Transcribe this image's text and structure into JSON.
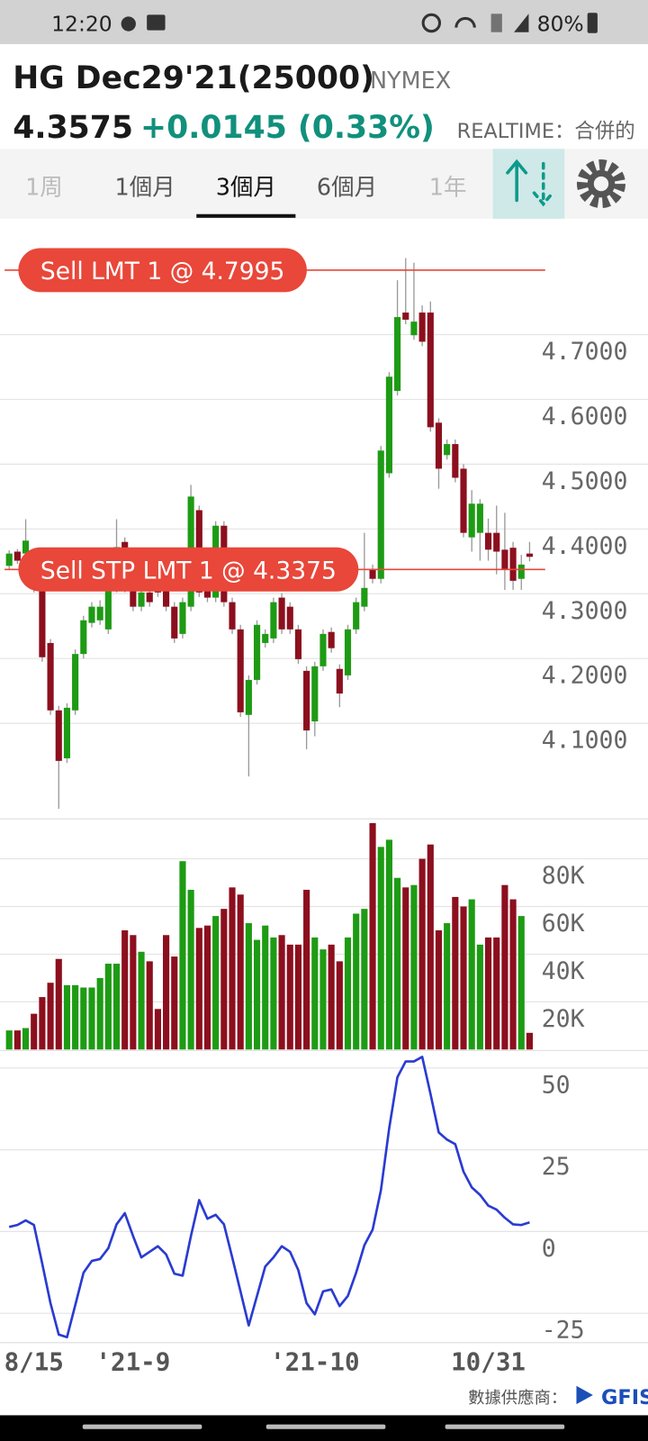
{
  "status_bar": {
    "time": "12:20",
    "battery": "80%"
  },
  "header": {
    "title": "HG Dec29'21(25000)",
    "exchange": "NYMEX",
    "price": "4.3575",
    "change": "+0.0145 (0.33%)",
    "mode": "REALTIME：合併的"
  },
  "tabs": {
    "items": [
      "1周",
      "1個月",
      "3個月",
      "6個月",
      "1年"
    ],
    "selected": 2,
    "disabled": [
      0,
      4
    ]
  },
  "footer": {
    "provider": "數據供應商：",
    "logo": "GFIS"
  },
  "chart_data": [
    {
      "type": "candlestick",
      "up_color": "#1e9b14",
      "down_color": "#8c0f1e",
      "grid": true,
      "ylim": [
        3.954,
        4.876
      ],
      "yticks": [
        {
          "value": 4.1,
          "label": "4.1000"
        },
        {
          "value": 4.2,
          "label": "4.2000"
        },
        {
          "value": 4.3,
          "label": "4.3000"
        },
        {
          "value": 4.4,
          "label": "4.4000"
        },
        {
          "value": 4.5,
          "label": "4.5000"
        },
        {
          "value": 4.6,
          "label": "4.6000"
        },
        {
          "value": 4.7,
          "label": "4.7000"
        }
      ],
      "annotation_color": "#e8473a",
      "annotations": [
        {
          "label": "Sell LMT 1 @ 4.7995",
          "value": 4.7995
        },
        {
          "label": "Sell STP LMT 1 @ 4.3375",
          "value": 4.3375
        }
      ],
      "open": [
        4.343,
        4.365,
        4.362,
        4.351,
        4.309,
        4.224,
        4.12,
        4.046,
        4.12,
        4.207,
        4.255,
        4.259,
        4.245,
        4.309,
        4.38,
        4.309,
        4.28,
        4.302,
        4.351,
        4.316,
        4.28,
        4.238,
        4.28,
        4.429,
        4.309,
        4.294,
        4.405,
        4.287,
        4.245,
        4.113,
        4.167,
        4.224,
        4.231,
        4.294,
        4.28,
        4.245,
        4.181,
        4.103,
        4.188,
        4.241,
        4.184,
        4.174,
        4.245,
        4.28,
        4.337,
        4.323,
        4.486,
        4.613,
        4.734,
        4.699,
        4.734,
        4.734,
        4.564,
        4.514,
        4.531,
        4.493,
        4.387,
        4.394,
        4.394,
        4.394,
        4.368,
        4.371,
        4.323,
        4.362
      ],
      "high": [
        4.367,
        4.369,
        4.415,
        4.358,
        4.315,
        4.23,
        4.127,
        4.131,
        4.214,
        4.266,
        4.287,
        4.29,
        4.316,
        4.415,
        4.387,
        4.316,
        4.309,
        4.309,
        4.358,
        4.323,
        4.287,
        4.294,
        4.468,
        4.436,
        4.316,
        4.412,
        4.412,
        4.294,
        4.252,
        4.174,
        4.259,
        4.245,
        4.294,
        4.301,
        4.287,
        4.252,
        4.188,
        4.195,
        4.245,
        4.248,
        4.191,
        4.252,
        4.294,
        4.394,
        4.345,
        4.528,
        4.642,
        4.784,
        4.818,
        4.811,
        4.745,
        4.751,
        4.571,
        4.538,
        4.538,
        4.5,
        4.46,
        4.446,
        4.416,
        4.436,
        4.425,
        4.38,
        4.36,
        4.38
      ],
      "low": [
        4.337,
        4.346,
        4.357,
        4.302,
        4.195,
        4.113,
        3.968,
        4.039,
        4.113,
        4.2,
        4.248,
        4.252,
        4.238,
        4.302,
        4.302,
        4.273,
        4.273,
        4.28,
        4.295,
        4.273,
        4.224,
        4.231,
        4.273,
        4.295,
        4.287,
        4.287,
        4.28,
        4.238,
        4.11,
        4.018,
        4.16,
        4.217,
        4.224,
        4.238,
        4.238,
        4.192,
        4.06,
        4.08,
        4.181,
        4.209,
        4.125,
        4.167,
        4.238,
        4.273,
        4.316,
        4.316,
        4.479,
        4.606,
        4.716,
        4.692,
        4.682,
        4.55,
        4.462,
        4.507,
        4.472,
        4.387,
        4.365,
        4.351,
        4.351,
        4.33,
        4.306,
        4.306,
        4.306,
        4.35
      ],
      "close": [
        4.362,
        4.351,
        4.382,
        4.309,
        4.202,
        4.12,
        4.042,
        4.124,
        4.207,
        4.259,
        4.28,
        4.28,
        4.309,
        4.372,
        4.309,
        4.28,
        4.302,
        4.287,
        4.302,
        4.28,
        4.231,
        4.287,
        4.45,
        4.302,
        4.294,
        4.405,
        4.287,
        4.245,
        4.117,
        4.167,
        4.252,
        4.238,
        4.287,
        4.245,
        4.245,
        4.199,
        4.089,
        4.188,
        4.238,
        4.216,
        4.146,
        4.245,
        4.287,
        4.309,
        4.323,
        4.521,
        4.635,
        4.727,
        4.723,
        4.72,
        4.689,
        4.557,
        4.493,
        4.531,
        4.479,
        4.394,
        4.439,
        4.439,
        4.368,
        4.365,
        4.337,
        4.32,
        4.345,
        4.357
      ]
    },
    {
      "type": "bar",
      "grid": true,
      "ylim": [
        0,
        96000
      ],
      "yticks": [
        {
          "value": 20000,
          "label": "20K"
        },
        {
          "value": 40000,
          "label": "40K"
        },
        {
          "value": 60000,
          "label": "60K"
        },
        {
          "value": 80000,
          "label": "80K"
        }
      ],
      "values": [
        8000,
        8000,
        9000,
        15000,
        22000,
        28000,
        38000,
        27000,
        27000,
        26000,
        26000,
        30000,
        36000,
        36000,
        50000,
        48000,
        41000,
        37000,
        17000,
        48000,
        39000,
        79000,
        67000,
        51000,
        52000,
        56000,
        59000,
        68000,
        65000,
        53000,
        46000,
        52000,
        47000,
        48000,
        44000,
        44000,
        67000,
        47000,
        42000,
        44000,
        37000,
        47000,
        57000,
        59000,
        95000,
        85000,
        88000,
        72000,
        68000,
        69000,
        80000,
        86000,
        50000,
        53000,
        64000,
        60000,
        63000,
        44000,
        47000,
        47000,
        69000,
        63000,
        56000,
        7000
      ]
    },
    {
      "type": "line",
      "color": "#2a3bd1",
      "grid": true,
      "ylim": [
        -33.7,
        54.8
      ],
      "yticks": [
        -25,
        0,
        25,
        50
      ],
      "categories": [
        null,
        null,
        null,
        "8/15",
        null,
        null,
        null,
        null,
        null,
        null,
        null,
        null,
        null,
        null,
        null,
        "'21-9",
        null,
        null,
        null,
        null,
        null,
        null,
        null,
        null,
        null,
        null,
        null,
        null,
        null,
        null,
        null,
        null,
        null,
        null,
        null,
        null,
        null,
        "'21-10",
        null,
        null,
        null,
        null,
        null,
        null,
        null,
        null,
        null,
        null,
        null,
        null,
        null,
        null,
        null,
        null,
        null,
        null,
        null,
        null,
        "10/31",
        null,
        null,
        null,
        null,
        null
      ],
      "values": [
        1.4,
        2,
        3.4,
        2,
        -9.8,
        -21.9,
        -31.5,
        -32.3,
        -22.5,
        -12.6,
        -9,
        -8.4,
        -5.1,
        2.2,
        5.6,
        -1.4,
        -7.9,
        -6.2,
        -4.5,
        -7,
        -12.9,
        -13.5,
        -1.4,
        9.6,
        3.9,
        5.1,
        2.2,
        -7.9,
        -18.3,
        -28.7,
        -19.7,
        -10.7,
        -7.9,
        -4.5,
        -6.2,
        -11.8,
        -21.9,
        -25.3,
        -18.3,
        -17.7,
        -22.8,
        -19.7,
        -12.6,
        -4.2,
        0.6,
        12.6,
        31.5,
        47.2,
        52,
        52,
        53.4,
        42.1,
        30.3,
        28.1,
        26.7,
        18.3,
        13.5,
        11.2,
        7.9,
        6.7,
        4.2,
        2.2,
        2,
        2.8
      ]
    }
  ]
}
